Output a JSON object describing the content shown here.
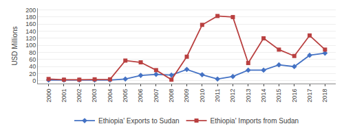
{
  "chart_data": {
    "type": "line",
    "x": [
      2000,
      2001,
      2002,
      2003,
      2004,
      2005,
      2006,
      2007,
      2008,
      2009,
      2010,
      2011,
      2012,
      2013,
      2014,
      2015,
      2016,
      2017,
      2018
    ],
    "series": [
      {
        "name": "Ethiopia' Exports to Sudan",
        "color": "#4472C4",
        "marker": "diamond",
        "values": [
          2,
          2,
          2,
          2,
          2,
          5,
          15,
          18,
          16,
          32,
          17,
          5,
          12,
          30,
          30,
          45,
          40,
          72,
          78
        ]
      },
      {
        "name": "Ethiopia' Imports from Sudan",
        "color": "#B94040",
        "marker": "square",
        "values": [
          5,
          3,
          3,
          4,
          4,
          57,
          52,
          30,
          3,
          68,
          158,
          183,
          180,
          50,
          120,
          88,
          70,
          128,
          88
        ]
      }
    ],
    "ylabel": "USD Millions",
    "xlim": [
      1999.3,
      2018.7
    ],
    "xticks": [
      2000,
      2001,
      2002,
      2003,
      2004,
      2005,
      2006,
      2007,
      2008,
      2009,
      2010,
      2011,
      2012,
      2013,
      2014,
      2015,
      2016,
      2017,
      2018
    ],
    "ylim": [
      -8,
      205
    ],
    "yticks": [
      0,
      20,
      40,
      60,
      80,
      100,
      120,
      140,
      160,
      180,
      200
    ],
    "grid": true,
    "legend": "bottom"
  }
}
